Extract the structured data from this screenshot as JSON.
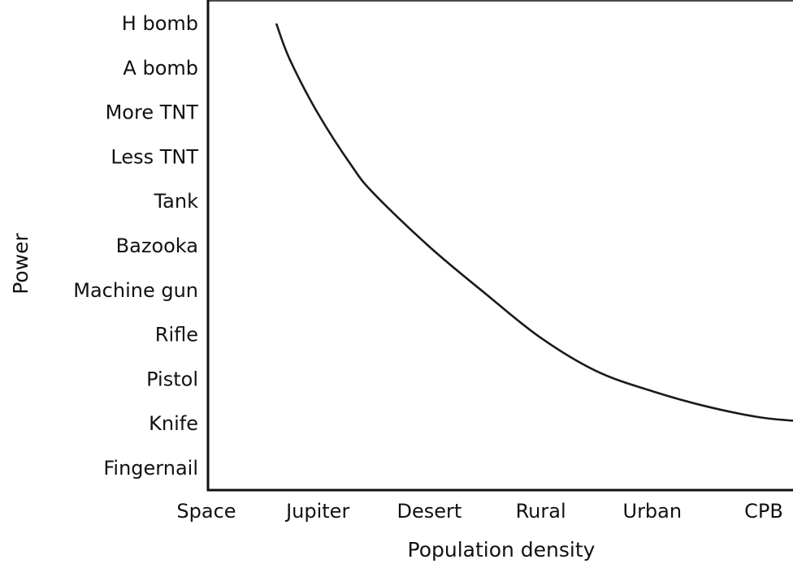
{
  "chart_data": {
    "type": "line",
    "xlabel": "Population density",
    "ylabel": "Power",
    "x_categories": [
      "Space",
      "Jupiter",
      "Desert",
      "Rural",
      "Urban",
      "CPB"
    ],
    "y_categories": [
      "Fingernail",
      "Knife",
      "Pistol",
      "Rifle",
      "Machine gun",
      "Bazooka",
      "Tank",
      "Less TNT",
      "More TNT",
      "A bomb",
      "H bomb"
    ],
    "grid": false,
    "legend": "none",
    "series": [
      {
        "color": "#1a1a1a",
        "x": [
          0.63,
          0.75,
          1.0,
          1.3,
          1.5,
          2.0,
          2.5,
          3.0,
          3.5,
          4.0,
          4.5,
          5.0,
          5.49
        ],
        "y": [
          10.0,
          9.2,
          8.0,
          6.83,
          6.2,
          5.0,
          3.95,
          2.95,
          2.2,
          1.75,
          1.4,
          1.15,
          1.05
        ]
      }
    ]
  }
}
